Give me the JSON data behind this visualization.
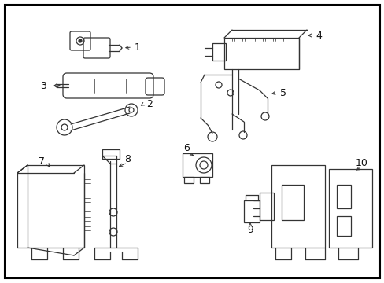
{
  "background_color": "#ffffff",
  "line_color": "#333333",
  "fig_width": 4.89,
  "fig_height": 3.6,
  "dpi": 100,
  "border": true
}
